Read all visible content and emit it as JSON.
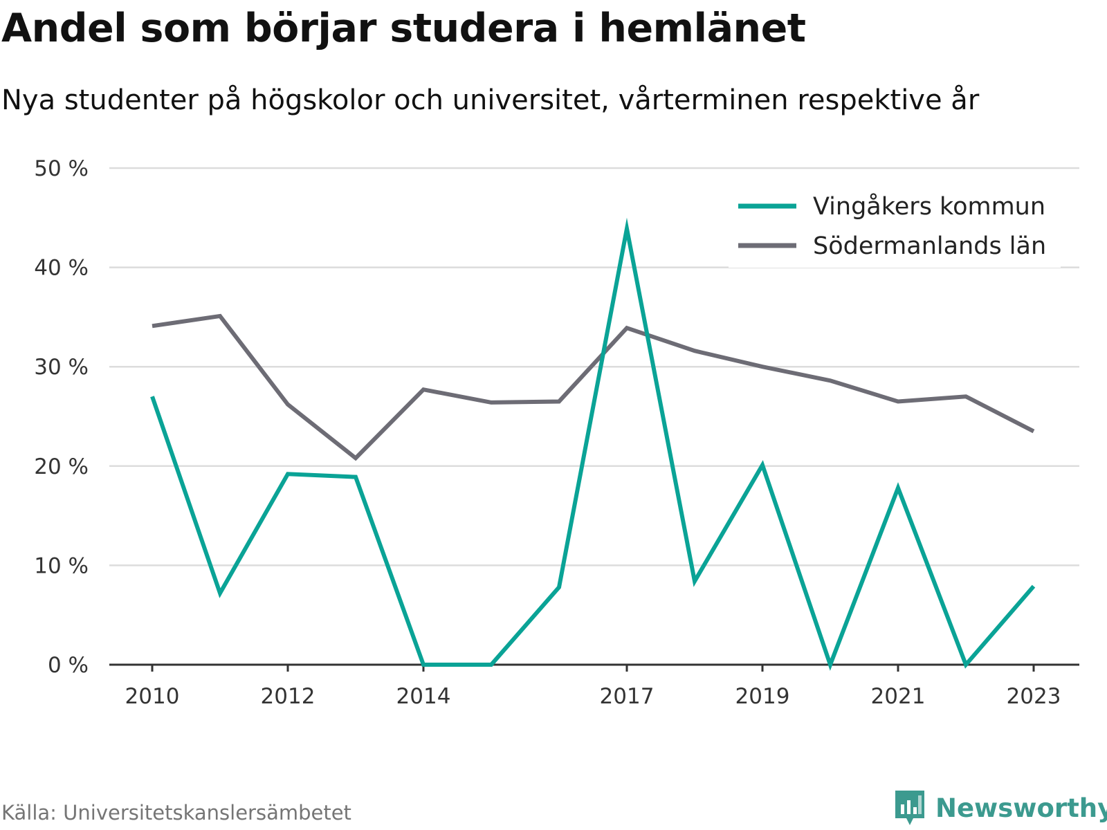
{
  "title": "Andel som börjar studera i hemlänet",
  "subtitle": "Nya studenter på högskolor och universitet, vårterminen respektive år",
  "source": "Källa: Universitetskanslersämbetet",
  "brand": "Newsworthy",
  "colors": {
    "vingaker": "#0aa396",
    "sodermanland": "#6d6c75",
    "grid": "#dcdcdc",
    "axis": "#333333",
    "brand": "#3c9a8f"
  },
  "chart_data": {
    "type": "line",
    "x": [
      2010,
      2011,
      2012,
      2013,
      2014,
      2015,
      2016,
      2017,
      2018,
      2019,
      2020,
      2021,
      2022,
      2023
    ],
    "x_tick_labels": [
      "2010",
      "2012",
      "2014",
      "2017",
      "2019",
      "2021",
      "2023"
    ],
    "y_tick_labels": [
      "0 %",
      "10 %",
      "20 %",
      "30 %",
      "40 %",
      "50 %"
    ],
    "ylim": [
      0,
      50
    ],
    "grid": true,
    "legend_position": "top-right",
    "series": [
      {
        "name": "Vingåkers kommun",
        "color": "#0aa396",
        "values": [
          27.0,
          7.2,
          19.2,
          18.9,
          0,
          0,
          7.8,
          43.9,
          8.4,
          20.1,
          0,
          17.8,
          0,
          7.9
        ]
      },
      {
        "name": "Södermanlands län",
        "color": "#6d6c75",
        "values": [
          34.1,
          35.1,
          26.2,
          20.8,
          27.7,
          26.4,
          26.5,
          33.9,
          31.6,
          30.0,
          28.6,
          26.5,
          27.0,
          23.5
        ]
      }
    ]
  }
}
